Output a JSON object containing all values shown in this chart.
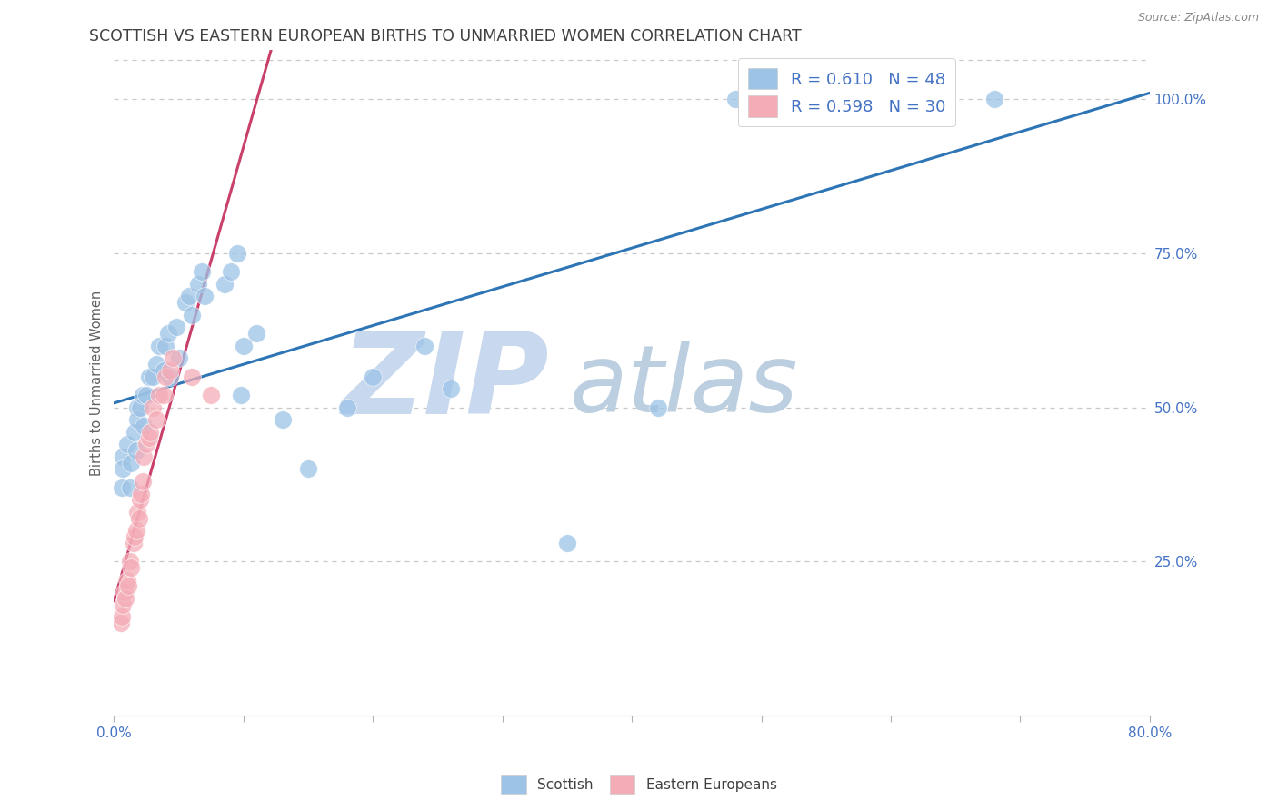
{
  "title": "SCOTTISH VS EASTERN EUROPEAN BIRTHS TO UNMARRIED WOMEN CORRELATION CHART",
  "source": "Source: ZipAtlas.com",
  "ylabel": "Births to Unmarried Women",
  "watermark_zip": "ZIP",
  "watermark_atlas": "atlas",
  "scottish_color": "#9dc3e6",
  "scottish_edge": "#9dc3e6",
  "eastern_color": "#f4acb7",
  "eastern_edge": "#f4acb7",
  "scottish_trendline_color": "#2e75b6",
  "eastern_trendline_color": "#c9406a",
  "dashed_line_color": "#c8c8c8",
  "bg_color": "#ffffff",
  "title_color": "#404040",
  "axis_label_color": "#4472c4",
  "ylabel_color": "#606060",
  "watermark_color": "#dce6f1",
  "scottish_x": [
    0.006,
    0.007,
    0.007,
    0.01,
    0.012,
    0.013,
    0.016,
    0.017,
    0.018,
    0.018,
    0.02,
    0.022,
    0.023,
    0.025,
    0.027,
    0.03,
    0.033,
    0.035,
    0.038,
    0.04,
    0.042,
    0.043,
    0.048,
    0.05,
    0.055,
    0.058,
    0.06,
    0.065,
    0.068,
    0.07,
    0.085,
    0.09,
    0.095,
    0.098,
    0.1,
    0.11,
    0.13,
    0.15,
    0.18,
    0.2,
    0.24,
    0.26,
    0.35,
    0.42,
    0.48,
    0.52,
    0.58,
    0.68
  ],
  "scottish_y": [
    0.37,
    0.42,
    0.4,
    0.44,
    0.37,
    0.41,
    0.46,
    0.43,
    0.5,
    0.48,
    0.5,
    0.52,
    0.47,
    0.52,
    0.55,
    0.55,
    0.57,
    0.6,
    0.56,
    0.6,
    0.62,
    0.55,
    0.63,
    0.58,
    0.67,
    0.68,
    0.65,
    0.7,
    0.72,
    0.68,
    0.7,
    0.72,
    0.75,
    0.52,
    0.6,
    0.62,
    0.48,
    0.4,
    0.5,
    0.55,
    0.6,
    0.53,
    0.28,
    0.5,
    1.0,
    1.0,
    1.0,
    1.0
  ],
  "eastern_x": [
    0.005,
    0.006,
    0.007,
    0.008,
    0.009,
    0.01,
    0.011,
    0.012,
    0.013,
    0.015,
    0.016,
    0.017,
    0.018,
    0.019,
    0.02,
    0.021,
    0.022,
    0.023,
    0.025,
    0.027,
    0.028,
    0.03,
    0.033,
    0.035,
    0.038,
    0.04,
    0.043,
    0.045,
    0.06,
    0.075
  ],
  "eastern_y": [
    0.15,
    0.16,
    0.18,
    0.2,
    0.19,
    0.22,
    0.21,
    0.25,
    0.24,
    0.28,
    0.29,
    0.3,
    0.33,
    0.32,
    0.35,
    0.36,
    0.38,
    0.42,
    0.44,
    0.45,
    0.46,
    0.5,
    0.48,
    0.52,
    0.52,
    0.55,
    0.56,
    0.58,
    0.55,
    0.52
  ],
  "xmin": 0.0,
  "xmax": 0.8,
  "ymin": 0.0,
  "ymax": 1.08,
  "ytick_positions": [
    0.25,
    0.5,
    0.75,
    1.0
  ],
  "ytick_labels": [
    "25.0%",
    "50.0%",
    "75.0%",
    "100.0%"
  ],
  "xtick_positions": [
    0.0,
    0.1,
    0.2,
    0.3,
    0.4,
    0.5,
    0.6,
    0.7,
    0.8
  ],
  "grid_dashes": [
    4,
    4
  ],
  "title_fontsize": 12.5,
  "tick_fontsize": 11,
  "ylabel_fontsize": 10.5,
  "legend_fontsize": 13,
  "source_fontsize": 9
}
